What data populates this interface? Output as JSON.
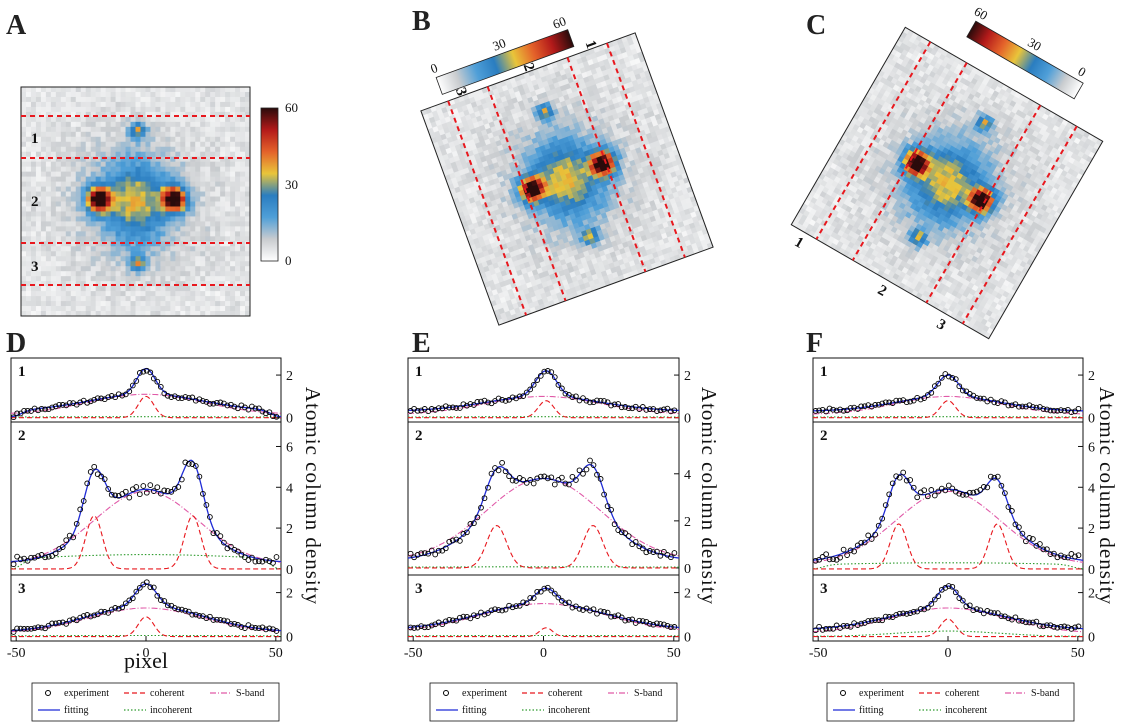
{
  "panel_labels": [
    "A",
    "B",
    "C",
    "D",
    "E",
    "F"
  ],
  "images": [
    {
      "panel": "A",
      "type": "heatmap",
      "colorbar": {
        "ticks": [
          "60",
          "30",
          "0"
        ],
        "range": [
          0,
          60
        ]
      },
      "region_labels": [
        "1",
        "2",
        "3"
      ]
    },
    {
      "panel": "B",
      "type": "heatmap",
      "colorbar": {
        "ticks": [
          "0",
          "30",
          "60"
        ],
        "range": [
          0,
          60
        ]
      },
      "region_labels": [
        "1",
        "2",
        "3"
      ]
    },
    {
      "panel": "C",
      "type": "heatmap",
      "colorbar": {
        "ticks": [
          "60",
          "30",
          "0"
        ],
        "range": [
          0,
          60
        ]
      },
      "region_labels": [
        "1",
        "2",
        "3"
      ]
    }
  ],
  "colors": {
    "dashed_line": "#e8181e",
    "experiment": "#000000",
    "fitting": "#1f2bd6",
    "coherent": "#e8181e",
    "incoherent": "#2e9b2e",
    "sband": "#e05aa8",
    "colormap": [
      "#ffffff",
      "#c9cccf",
      "#4f9fd8",
      "#2a7dc0",
      "#e9c53a",
      "#e4622a",
      "#b31a1a",
      "#2a0b0b"
    ]
  },
  "shared_axes": {
    "xlabel": "pixel",
    "ylabel": "Atomic column density",
    "xticks": [
      "-50",
      "0",
      "50"
    ],
    "xlim": [
      -52,
      52
    ]
  },
  "legend": {
    "items": [
      {
        "key": "experiment",
        "label": "experiment",
        "style": "circle"
      },
      {
        "key": "coherent",
        "label": "coherent",
        "style": "dashed"
      },
      {
        "key": "sband",
        "label": "S-band",
        "style": "dashdot"
      },
      {
        "key": "fitting",
        "label": "fitting",
        "style": "solid"
      },
      {
        "key": "incoherent",
        "label": "incoherent",
        "style": "dotted"
      }
    ]
  },
  "chart_data": [
    {
      "panel": "D",
      "type": "line",
      "rows": [
        {
          "label": "1",
          "ylim": [
            -0.2,
            2.8
          ],
          "yticks": [
            "2",
            "0"
          ],
          "series": {
            "fitting": {
              "baseline": 0.3,
              "edge_drop": 0.3,
              "peaks": [
                [
                  0,
                  1.2,
                  3.5
                ]
              ],
              "bump": [
                1.1,
                22
              ]
            },
            "sband": {
              "bump": [
                1.1,
                22
              ],
              "baseline": 0.15
            },
            "coherent": {
              "peaks": [
                [
                  0,
                  1.0,
                  3.0
                ]
              ]
            },
            "incoherent": {
              "level": 0.05
            }
          }
        },
        {
          "label": "2",
          "ylim": [
            -0.3,
            7.2
          ],
          "yticks": [
            "6",
            "4",
            "2",
            "0"
          ],
          "series": {
            "fitting": {
              "baseline": 0.3,
              "peaks": [
                [
                  -20,
                  2.6,
                  4.0
                ],
                [
                  18,
                  2.8,
                  4.0
                ]
              ],
              "bump": [
                3.9,
                18
              ]
            },
            "sband": {
              "bump": [
                3.8,
                20
              ],
              "baseline": 0.2
            },
            "coherent": {
              "peaks": [
                [
                  -20,
                  2.6,
                  3.2
                ],
                [
                  18,
                  2.6,
                  3.2
                ]
              ]
            },
            "incoherent": {
              "level": 0.7,
              "edge_drop": 0.5
            }
          }
        },
        {
          "label": "3",
          "ylim": [
            -0.2,
            2.8
          ],
          "yticks": [
            "2",
            "0"
          ],
          "series": {
            "fitting": {
              "baseline": 0.2,
              "peaks": [
                [
                  0,
                  1.0,
                  4.0
                ]
              ],
              "bump": [
                1.4,
                22
              ]
            },
            "sband": {
              "bump": [
                1.3,
                22
              ],
              "baseline": 0.15
            },
            "coherent": {
              "peaks": [
                [
                  0,
                  0.9,
                  3.0
                ]
              ]
            },
            "incoherent": {
              "level": 0.05
            }
          }
        }
      ]
    },
    {
      "panel": "E",
      "type": "line",
      "rows": [
        {
          "label": "1",
          "ylim": [
            -0.2,
            2.8
          ],
          "yticks": [
            "2",
            "0"
          ],
          "series": {
            "fitting": {
              "baseline": 0.3,
              "peaks": [
                [
                  1,
                  1.2,
                  4.0
                ]
              ],
              "bump": [
                1.0,
                22
              ]
            },
            "sband": {
              "bump": [
                1.0,
                22
              ],
              "baseline": 0.15
            },
            "coherent": {
              "peaks": [
                [
                  1,
                  0.8,
                  3.0
                ]
              ]
            },
            "incoherent": {
              "level": 0.05
            }
          }
        },
        {
          "label": "2",
          "ylim": [
            -0.3,
            6.2
          ],
          "yticks": [
            "4",
            "2",
            "0"
          ],
          "series": {
            "fitting": {
              "baseline": 0.3,
              "peaks": [
                [
                  -18,
                  1.6,
                  4.5
                ],
                [
                  19,
                  1.8,
                  4.5
                ]
              ],
              "bump": [
                3.8,
                20
              ]
            },
            "sband": {
              "bump": [
                3.8,
                22
              ],
              "baseline": 0.3
            },
            "coherent": {
              "peaks": [
                [
                  -18,
                  1.8,
                  3.8
                ],
                [
                  19,
                  1.8,
                  3.8
                ]
              ]
            },
            "incoherent": {
              "level": 0.05
            }
          }
        },
        {
          "label": "3",
          "ylim": [
            -0.2,
            2.8
          ],
          "yticks": [
            "2",
            "0"
          ],
          "series": {
            "fitting": {
              "baseline": 0.3,
              "peaks": [
                [
                  1,
                  0.7,
                  4.0
                ]
              ],
              "bump": [
                1.5,
                24
              ]
            },
            "sband": {
              "bump": [
                1.5,
                24
              ],
              "baseline": 0.2
            },
            "coherent": {
              "peaks": [
                [
                  1,
                  0.4,
                  2.5
                ]
              ]
            },
            "incoherent": {
              "level": 0.05
            }
          }
        }
      ]
    },
    {
      "panel": "F",
      "type": "line",
      "rows": [
        {
          "label": "1",
          "ylim": [
            -0.2,
            2.8
          ],
          "yticks": [
            "2",
            "0"
          ],
          "series": {
            "fitting": {
              "baseline": 0.3,
              "peaks": [
                [
                  0,
                  1.0,
                  4.0
                ]
              ],
              "bump": [
                1.0,
                20
              ]
            },
            "sband": {
              "bump": [
                1.0,
                20
              ],
              "baseline": 0.15
            },
            "coherent": {
              "peaks": [
                [
                  0,
                  0.8,
                  3.0
                ]
              ]
            },
            "incoherent": {
              "level": 0.05
            }
          }
        },
        {
          "label": "2",
          "ylim": [
            -0.3,
            7.2
          ],
          "yticks": [
            "6",
            "4",
            "2",
            "0"
          ],
          "series": {
            "fitting": {
              "baseline": 0.3,
              "peaks": [
                [
                  -19,
                  2.0,
                  4.0
                ],
                [
                  19,
                  1.8,
                  4.0
                ]
              ],
              "bump": [
                3.9,
                20
              ]
            },
            "sband": {
              "bump": [
                3.8,
                20
              ],
              "baseline": 0.2
            },
            "coherent": {
              "peaks": [
                [
                  -19,
                  2.2,
                  3.2
                ],
                [
                  19,
                  2.2,
                  3.2
                ]
              ]
            },
            "incoherent": {
              "level": 0.3,
              "edge_drop": 0.2
            }
          }
        },
        {
          "label": "3",
          "ylim": [
            -0.2,
            2.8
          ],
          "yticks": [
            "2",
            "0"
          ],
          "series": {
            "fitting": {
              "baseline": 0.3,
              "peaks": [
                [
                  0,
                  1.0,
                  4.0
                ]
              ],
              "bump": [
                1.3,
                22
              ]
            },
            "sband": {
              "bump": [
                1.3,
                22
              ],
              "baseline": 0.15
            },
            "coherent": {
              "peaks": [
                [
                  0,
                  0.8,
                  3.0
                ]
              ]
            },
            "incoherent": {
              "level": 0.25,
              "width": 10
            }
          }
        }
      ]
    }
  ]
}
